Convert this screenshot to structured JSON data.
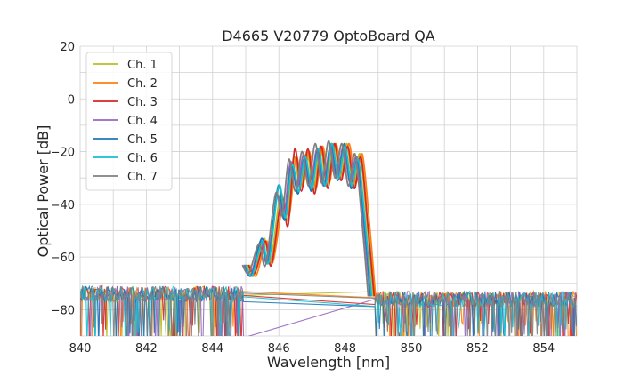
{
  "chart_data": {
    "type": "line",
    "title": "D4665 V20779 OptoBoard QA",
    "xlabel": "Wavelength [nm]",
    "ylabel": "Optical Power [dB]",
    "xlim": [
      840,
      855
    ],
    "ylim": [
      -90,
      20
    ],
    "xticks": [
      840,
      842,
      844,
      846,
      848,
      850,
      852,
      854
    ],
    "yticks": [
      20,
      0,
      -20,
      -40,
      -60,
      -80
    ],
    "xtick_labels": [
      "840",
      "842",
      "844",
      "846",
      "848",
      "850",
      "852",
      "854"
    ],
    "ytick_labels": [
      "20",
      "0",
      "−20",
      "−40",
      "−60",
      "−80"
    ],
    "grid": true,
    "legend_position": "top-left",
    "series": [
      {
        "name": "Ch. 1",
        "color": "#bcbd22",
        "shift": 0.05,
        "points": [
          [
            845.0,
            -63
          ],
          [
            845.2,
            -67
          ],
          [
            845.5,
            -53
          ],
          [
            845.7,
            -62
          ],
          [
            846.0,
            -36
          ],
          [
            846.2,
            -46
          ],
          [
            846.4,
            -22
          ],
          [
            846.6,
            -34
          ],
          [
            846.8,
            -20
          ],
          [
            847.0,
            -35
          ],
          [
            847.2,
            -18
          ],
          [
            847.4,
            -33
          ],
          [
            847.6,
            -17
          ],
          [
            847.8,
            -30
          ],
          [
            848.0,
            -17
          ],
          [
            848.2,
            -33
          ],
          [
            848.4,
            -21
          ],
          [
            848.6,
            -46
          ],
          [
            848.8,
            -75
          ]
        ]
      },
      {
        "name": "Ch. 2",
        "color": "#ff7f0e",
        "shift": 0.12,
        "points": [
          [
            845.0,
            -63
          ],
          [
            845.2,
            -67
          ],
          [
            845.5,
            -54
          ],
          [
            845.7,
            -62
          ],
          [
            846.0,
            -40
          ],
          [
            846.2,
            -44
          ],
          [
            846.4,
            -22
          ],
          [
            846.6,
            -33
          ],
          [
            846.8,
            -20
          ],
          [
            847.0,
            -34
          ],
          [
            847.2,
            -18
          ],
          [
            847.4,
            -32
          ],
          [
            847.6,
            -17
          ],
          [
            847.8,
            -29
          ],
          [
            848.0,
            -17
          ],
          [
            848.2,
            -32
          ],
          [
            848.4,
            -21
          ],
          [
            848.6,
            -45
          ],
          [
            848.8,
            -75
          ]
        ]
      },
      {
        "name": "Ch. 3",
        "color": "#d62728",
        "shift": 0.08,
        "points": [
          [
            845.0,
            -63
          ],
          [
            845.2,
            -66
          ],
          [
            845.5,
            -54
          ],
          [
            845.7,
            -63
          ],
          [
            846.0,
            -38
          ],
          [
            846.2,
            -48
          ],
          [
            846.4,
            -19
          ],
          [
            846.6,
            -35
          ],
          [
            846.8,
            -19
          ],
          [
            847.0,
            -36
          ],
          [
            847.2,
            -18
          ],
          [
            847.4,
            -34
          ],
          [
            847.6,
            -17
          ],
          [
            847.8,
            -31
          ],
          [
            848.0,
            -18
          ],
          [
            848.2,
            -34
          ],
          [
            848.4,
            -22
          ],
          [
            848.6,
            -47
          ],
          [
            848.8,
            -75
          ]
        ]
      },
      {
        "name": "Ch. 4",
        "color": "#9467bd",
        "shift": -0.05,
        "points": [
          [
            845.0,
            -63
          ],
          [
            845.2,
            -67
          ],
          [
            845.5,
            -54
          ],
          [
            845.7,
            -62
          ],
          [
            846.0,
            -37
          ],
          [
            846.2,
            -45
          ],
          [
            846.4,
            -24
          ],
          [
            846.6,
            -34
          ],
          [
            846.8,
            -21
          ],
          [
            847.0,
            -34
          ],
          [
            847.2,
            -19
          ],
          [
            847.4,
            -33
          ],
          [
            847.6,
            -18
          ],
          [
            847.8,
            -30
          ],
          [
            848.0,
            -18
          ],
          [
            848.2,
            -32
          ],
          [
            848.4,
            -22
          ],
          [
            848.6,
            -46
          ],
          [
            848.8,
            -75
          ]
        ]
      },
      {
        "name": "Ch. 5",
        "color": "#1f77b4",
        "shift": -0.02,
        "points": [
          [
            845.0,
            -63
          ],
          [
            845.2,
            -67
          ],
          [
            845.5,
            -53
          ],
          [
            845.7,
            -62
          ],
          [
            846.0,
            -33
          ],
          [
            846.2,
            -46
          ],
          [
            846.4,
            -25
          ],
          [
            846.6,
            -36
          ],
          [
            846.8,
            -22
          ],
          [
            847.0,
            -35
          ],
          [
            847.2,
            -19
          ],
          [
            847.4,
            -33
          ],
          [
            847.6,
            -17
          ],
          [
            847.8,
            -31
          ],
          [
            848.0,
            -17
          ],
          [
            848.2,
            -34
          ],
          [
            848.4,
            -23
          ],
          [
            848.6,
            -47
          ],
          [
            848.8,
            -75
          ]
        ]
      },
      {
        "name": "Ch. 6",
        "color": "#17becf",
        "shift": 0.0,
        "points": [
          [
            845.0,
            -63
          ],
          [
            845.2,
            -67
          ],
          [
            845.5,
            -54
          ],
          [
            845.7,
            -62
          ],
          [
            846.0,
            -33
          ],
          [
            846.2,
            -45
          ],
          [
            846.4,
            -25
          ],
          [
            846.6,
            -35
          ],
          [
            846.8,
            -22
          ],
          [
            847.0,
            -34
          ],
          [
            847.2,
            -19
          ],
          [
            847.4,
            -33
          ],
          [
            847.6,
            -17
          ],
          [
            847.8,
            -30
          ],
          [
            848.0,
            -18
          ],
          [
            848.2,
            -33
          ],
          [
            848.4,
            -23
          ],
          [
            848.6,
            -46
          ],
          [
            848.8,
            -75
          ]
        ]
      },
      {
        "name": "Ch. 7",
        "color": "#7f7f7f",
        "shift": -0.1,
        "points": [
          [
            845.0,
            -63
          ],
          [
            845.2,
            -66
          ],
          [
            845.5,
            -55
          ],
          [
            845.7,
            -63
          ],
          [
            846.0,
            -36
          ],
          [
            846.2,
            -44
          ],
          [
            846.4,
            -23
          ],
          [
            846.6,
            -35
          ],
          [
            846.8,
            -20
          ],
          [
            847.0,
            -33
          ],
          [
            847.2,
            -17
          ],
          [
            847.4,
            -32
          ],
          [
            847.6,
            -16
          ],
          [
            847.8,
            -30
          ],
          [
            848.0,
            -17
          ],
          [
            848.2,
            -33
          ],
          [
            848.4,
            -21
          ],
          [
            848.6,
            -45
          ],
          [
            848.8,
            -75
          ]
        ]
      }
    ]
  }
}
